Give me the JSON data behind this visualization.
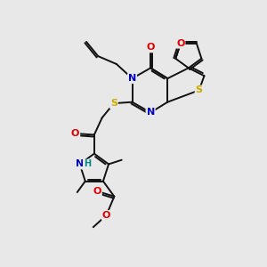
{
  "background_color": "#e8e8e8",
  "fig_width": 3.0,
  "fig_height": 3.0,
  "dpi": 100,
  "atom_colors": {
    "N": "#0000cc",
    "O": "#dd0000",
    "S": "#ccaa00",
    "H": "#008888"
  },
  "bond_color": "#111111",
  "bond_width": 1.4
}
